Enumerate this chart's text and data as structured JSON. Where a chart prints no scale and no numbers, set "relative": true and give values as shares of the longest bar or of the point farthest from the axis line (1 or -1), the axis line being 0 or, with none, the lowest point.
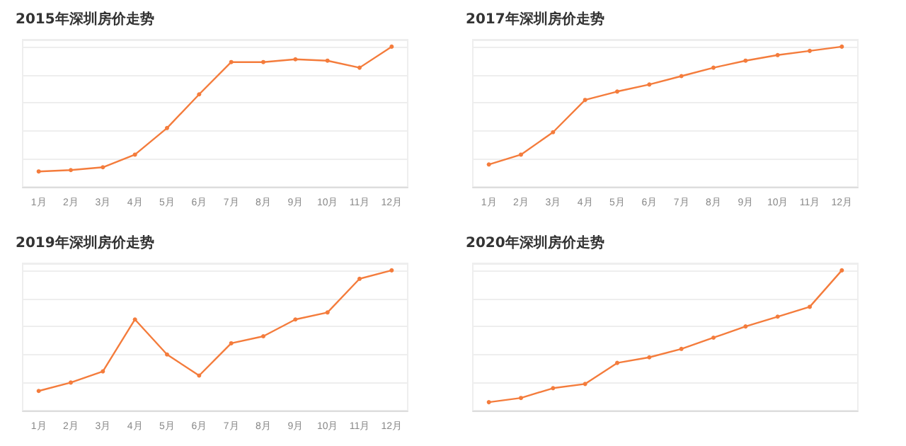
{
  "chart_data": [
    {
      "type": "line",
      "title": "2015年深圳房价走势",
      "categories": [
        "1月",
        "2月",
        "3月",
        "4月",
        "5月",
        "6月",
        "7月",
        "8月",
        "9月",
        "10月",
        "11月",
        "12月"
      ],
      "relative": true,
      "grid": "y",
      "marker": "circle",
      "series": [
        {
          "color": "#f47c3c",
          "values": [
            0.11,
            0.12,
            0.14,
            0.23,
            0.42,
            0.66,
            0.89,
            0.89,
            0.91,
            0.9,
            0.85,
            1
          ]
        }
      ]
    },
    {
      "type": "line",
      "title": "2017年深圳房价走势",
      "categories": [
        "1月",
        "2月",
        "3月",
        "4月",
        "5月",
        "6月",
        "7月",
        "8月",
        "9月",
        "10月",
        "11月",
        "12月"
      ],
      "relative": true,
      "grid": "y",
      "marker": "circle",
      "series": [
        {
          "color": "#f47c3c",
          "values": [
            0.16,
            0.23,
            0.39,
            0.62,
            0.68,
            0.73,
            0.79,
            0.85,
            0.9,
            0.94,
            0.97,
            1
          ]
        }
      ]
    },
    {
      "type": "line",
      "title": "2019年深圳房价走势",
      "categories": [
        "1月",
        "2月",
        "3月",
        "4月",
        "5月",
        "6月",
        "7月",
        "8月",
        "9月",
        "10月",
        "11月",
        "12月"
      ],
      "relative": true,
      "grid": "y",
      "marker": "circle",
      "series": [
        {
          "color": "#f47c3c",
          "values": [
            0.14,
            0.2,
            0.28,
            0.65,
            0.4,
            0.25,
            0.48,
            0.53,
            0.65,
            0.7,
            0.94,
            1
          ]
        }
      ]
    },
    {
      "type": "line",
      "title": "2020年深圳房价走势",
      "categories": [
        null,
        null,
        null,
        null,
        null,
        null,
        null,
        null,
        null,
        null,
        null,
        null
      ],
      "relative": true,
      "grid": "y",
      "marker": "circle",
      "series": [
        {
          "color": "#f47c3c",
          "values": [
            0.06,
            0.09,
            0.16,
            0.19,
            0.34,
            0.38,
            0.44,
            0.52,
            0.6,
            0.67,
            0.74,
            1
          ]
        }
      ]
    }
  ]
}
